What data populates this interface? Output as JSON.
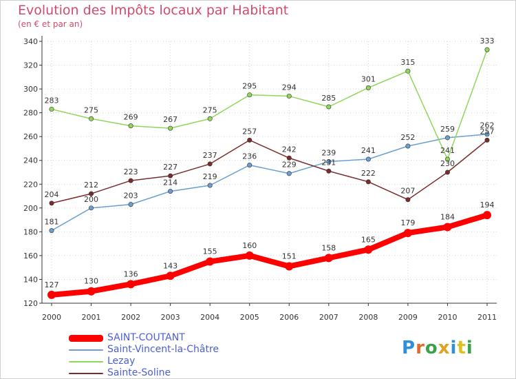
{
  "title": "Evolution des Impôts locaux par Habitant",
  "subtitle": "(en € et par an)",
  "logo_text": "Proxiti",
  "colors": {
    "background": "#ffffff",
    "axis": "#333333",
    "grid": "#d0d0d0"
  },
  "chart_data": {
    "type": "line",
    "title": "Evolution des Impôts locaux par Habitant",
    "subtitle": "(en € et par an)",
    "xlabel": "",
    "ylabel": "",
    "x": [
      "2000",
      "2001",
      "2002",
      "2003",
      "2004",
      "2005",
      "2006",
      "2007",
      "2008",
      "2009",
      "2010",
      "2011"
    ],
    "ylim": [
      120,
      340
    ],
    "yticks": [
      120,
      140,
      160,
      180,
      200,
      220,
      240,
      260,
      280,
      300,
      320,
      340
    ],
    "legend_position": "bottom-left",
    "series": [
      {
        "name": "SAINT-COUTANT",
        "color": "#ff0000",
        "emphasis": true,
        "values": [
          127,
          130,
          136,
          143,
          155,
          160,
          151,
          158,
          165,
          179,
          184,
          194
        ]
      },
      {
        "name": "Saint-Vincent-la-Châtre",
        "color": "#6a9fd0",
        "emphasis": false,
        "values": [
          181,
          200,
          203,
          214,
          219,
          236,
          229,
          239,
          241,
          252,
          259,
          262
        ]
      },
      {
        "name": "Lezay",
        "color": "#8fd65a",
        "emphasis": false,
        "values": [
          283,
          275,
          269,
          267,
          275,
          295,
          294,
          285,
          301,
          315,
          241,
          333
        ]
      },
      {
        "name": "Sainte-Soline",
        "color": "#7a2c2c",
        "emphasis": false,
        "values": [
          204,
          212,
          223,
          227,
          237,
          257,
          242,
          231,
          222,
          207,
          230,
          257
        ]
      }
    ]
  }
}
